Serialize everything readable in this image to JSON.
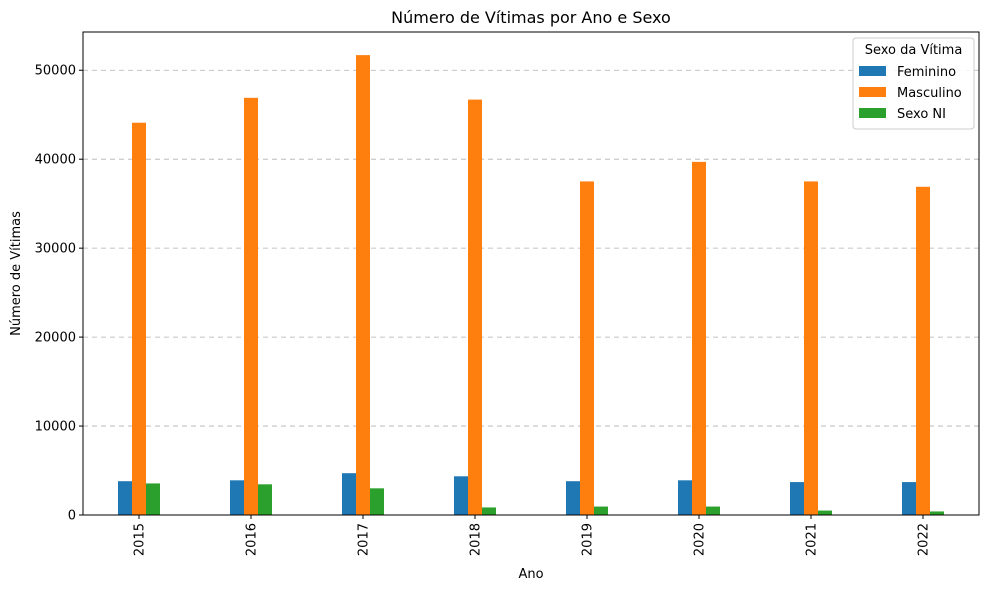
{
  "chart_data": {
    "type": "bar",
    "title": "Número de Vítimas por Ano e Sexo",
    "xlabel": "Ano",
    "ylabel": "Número de Vítimas",
    "categories": [
      "2015",
      "2016",
      "2017",
      "2018",
      "2019",
      "2020",
      "2021",
      "2022"
    ],
    "series": [
      {
        "name": "Feminino",
        "color": "#1f77b4",
        "values": [
          3800,
          3900,
          4700,
          4350,
          3800,
          3900,
          3700,
          3700
        ]
      },
      {
        "name": "Masculino",
        "color": "#ff7f0e",
        "values": [
          44100,
          46900,
          51700,
          46700,
          37500,
          39700,
          37500,
          36900
        ]
      },
      {
        "name": "Sexo NI",
        "color": "#2ca02c",
        "values": [
          3550,
          3450,
          3000,
          850,
          950,
          950,
          500,
          400
        ]
      }
    ],
    "ylim": [
      0,
      54300
    ],
    "yticks": [
      "0",
      "10000",
      "20000",
      "30000",
      "40000",
      "50000"
    ],
    "grid": "y-dashed",
    "legend": {
      "title": "Sexo da Vítima",
      "placement": "top-right"
    }
  }
}
